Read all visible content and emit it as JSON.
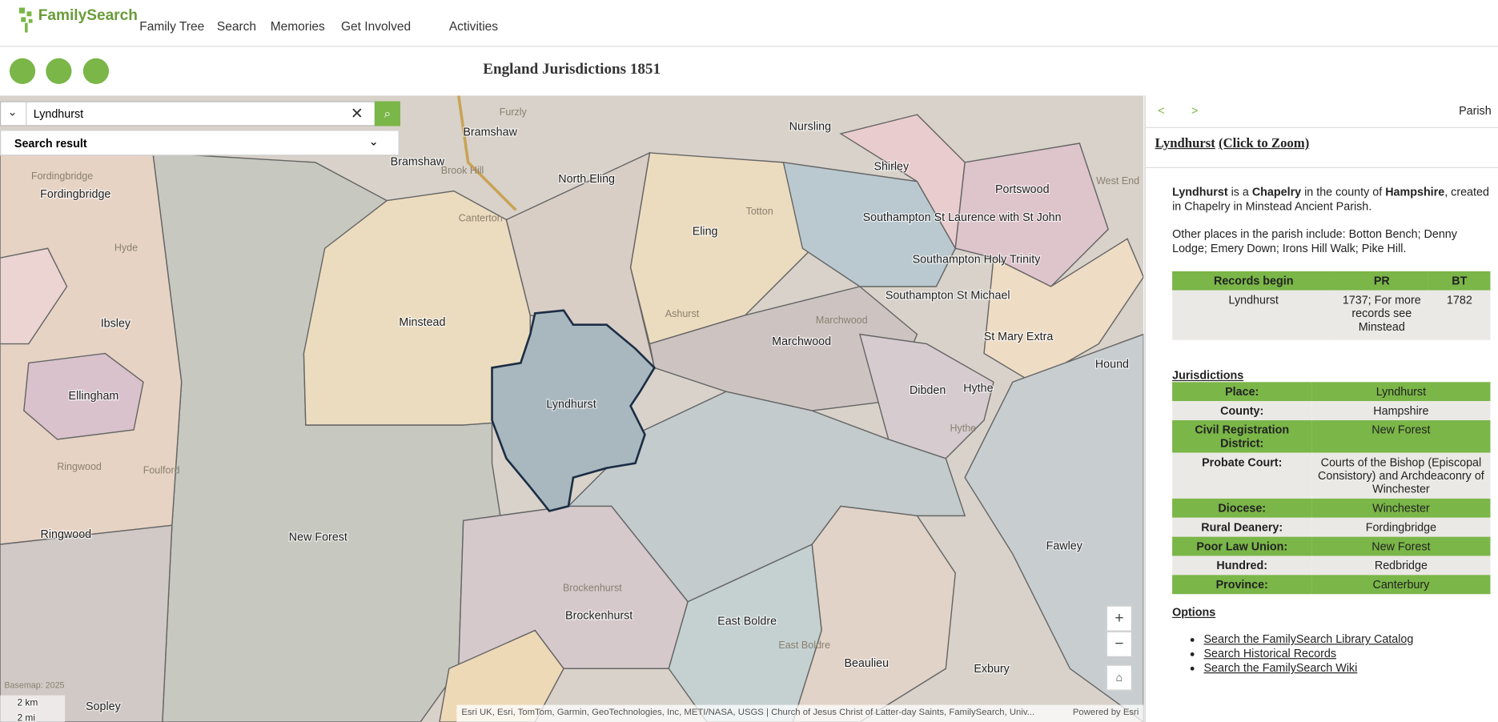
{
  "header": {
    "logo": "FamilySearch",
    "nav": [
      "Family Tree",
      "Search",
      "Memories",
      "Get Involved",
      "Activities"
    ]
  },
  "map_title": "England Jurisdictions 1851",
  "search": {
    "query": "Lyndhurst",
    "result_label": "Search result"
  },
  "map": {
    "labels": [
      "Bramshaw",
      "Bramshaw",
      "Nursling",
      "North Eling",
      "Shirley",
      "Portswood",
      "Fordingbridge",
      "Eling",
      "Southampton St Laurence with St John",
      "Southampton Holy Trinity",
      "Ibsley",
      "Minstead",
      "Southampton St Michael",
      "Marchwood",
      "St Mary Extra",
      "Hound",
      "Ellingham",
      "Lyndhurst",
      "Dibden",
      "Hythe",
      "Ringwood",
      "New Forest",
      "Fawley",
      "Brockenhurst",
      "East Boldre",
      "Beaulieu",
      "Exbury",
      "Sopley"
    ],
    "basemap_labels": [
      "Furzly",
      "Brook Hill",
      "Canterton",
      "Totton",
      "Hyde",
      "Ashurst",
      "Foulford",
      "Fordingbridge",
      "Ringwood",
      "Marchwood",
      "West End",
      "Hythe",
      "Brockenhurst",
      "East Boldre"
    ],
    "controls": [
      "+",
      "−"
    ],
    "scale": [
      "2 km",
      "2 mi"
    ],
    "basemap": "Basemap: 2025",
    "attribution": "Esri UK, Esri, TomTom, Garmin, GeoTechnologies, Inc, METI/NASA, USGS | Church of Jesus Christ of Latter-day Saints, FamilySearch, Univ...",
    "powered": "Powered by Esri"
  },
  "panel": {
    "prev": "<",
    "next": ">",
    "level": "Parish",
    "heading": "Lyndhurst",
    "zoom": "(Click to Zoom)",
    "intro": [
      "Lyndhurst",
      " is a ",
      "Chapelry",
      " in the county of ",
      "Hampshire",
      ", created in Chapelry in Minstead Ancient Parish."
    ],
    "other_places": "Other places in the parish include: Botton Bench; Denny Lodge; Emery Down; Irons Hill Walk; Pike Hill.",
    "records": {
      "header": [
        "Records begin",
        "PR",
        "BT"
      ],
      "rows": [
        [
          "Lyndhurst",
          "1737; For more records see Minstead",
          "1782"
        ]
      ]
    },
    "jurisdictions_heading": "Jurisdictions",
    "jurisdictions": [
      [
        "Place:",
        "Lyndhurst"
      ],
      [
        "County:",
        "Hampshire"
      ],
      [
        "Civil Registration District:",
        "New Forest"
      ],
      [
        "Probate Court:",
        "Courts of the Bishop (Episcopal Consistory) and Archdeaconry of Winchester"
      ],
      [
        "Diocese:",
        "Winchester"
      ],
      [
        "Rural Deanery:",
        "Fordingbridge"
      ],
      [
        "Poor Law Union:",
        "New Forest"
      ],
      [
        "Hundred:",
        "Redbridge"
      ],
      [
        "Province:",
        "Canterbury"
      ]
    ],
    "options_heading": "Options",
    "options": [
      "Search the FamilySearch Library Catalog",
      "Search Historical Records",
      "Search the FamilySearch Wiki"
    ]
  }
}
